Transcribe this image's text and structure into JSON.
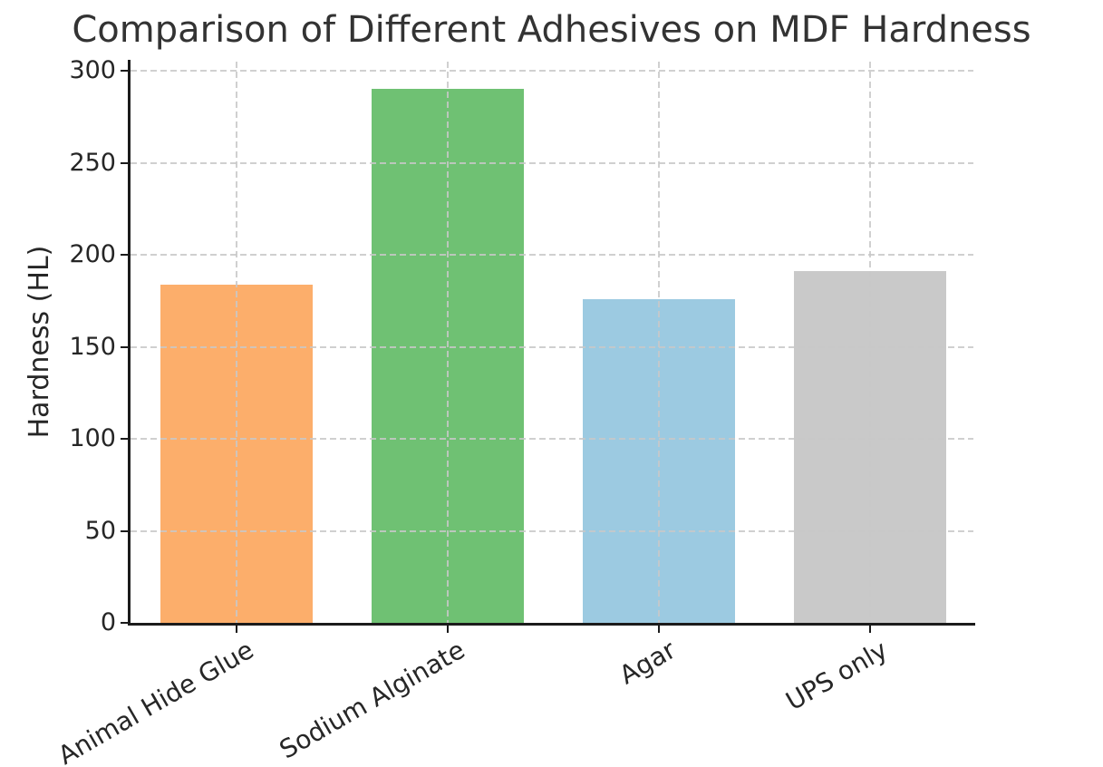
{
  "chart_data": {
    "type": "bar",
    "title": "Comparison of Different Adhesives on MDF Hardness",
    "xlabel": "",
    "ylabel": "Hardness (HL)",
    "categories": [
      "Animal Hide Glue",
      "Sodium Alginate",
      "Agar",
      "UPS only"
    ],
    "values": [
      184,
      290,
      176,
      191
    ],
    "bar_colors": [
      "#fcae6b",
      "#6fc173",
      "#9ccae1",
      "#c9c9c9"
    ],
    "yticks": [
      0,
      50,
      100,
      150,
      200,
      250,
      300
    ],
    "ylim": [
      0,
      305
    ],
    "grid": true,
    "grid_style": "dashed",
    "grid_over_bars": true,
    "legend": "none",
    "x_tick_label_rotation_deg": 30,
    "colors": {
      "spine": "#1b1b1b",
      "grid": "#cccccc",
      "title_text": "#333333",
      "tick_text": "#262626",
      "background": "#ffffff"
    }
  }
}
